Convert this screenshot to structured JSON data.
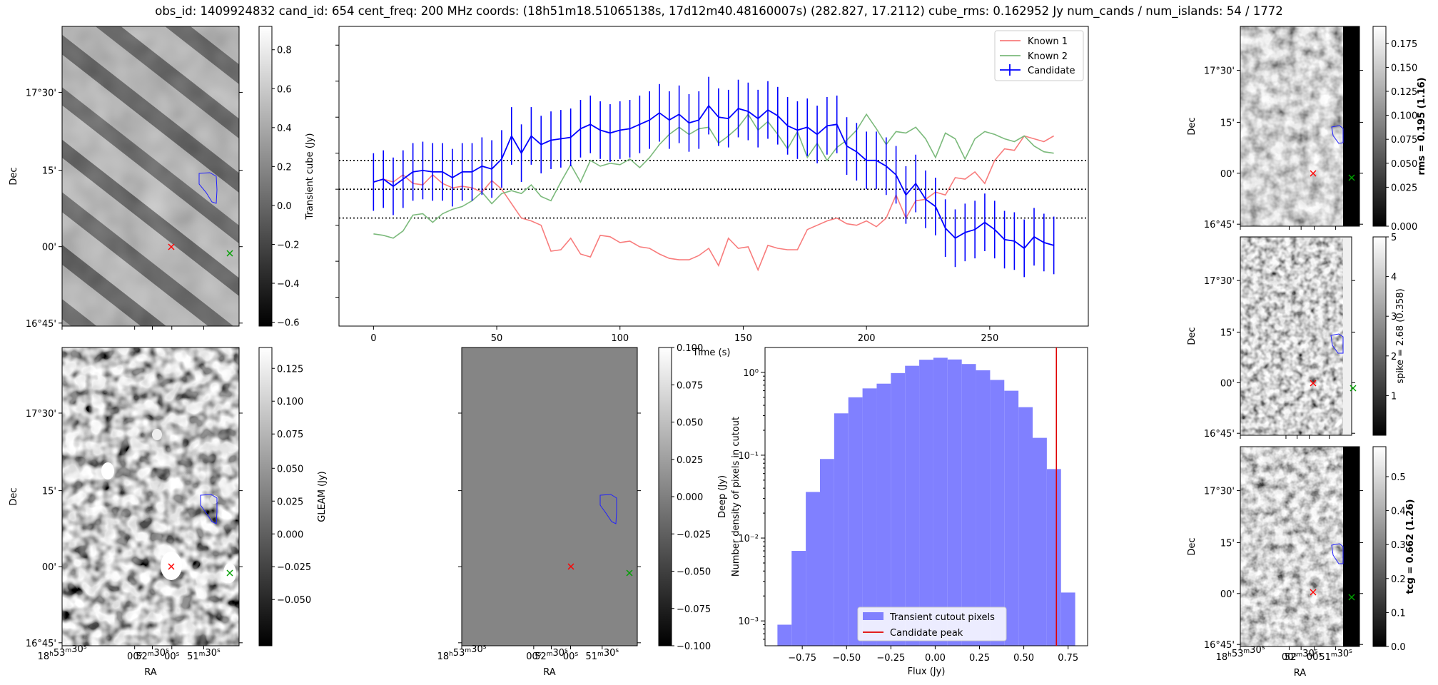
{
  "header": {
    "title": "obs_id: 1409924832 cand_id: 654 cent_freq: 200 MHz coords: (18h51m18.51065138s, 17d12m40.48160007s) (282.827, 17.2112) cube_rms: 0.162952 Jy num_cands / num_islands: 54 / 1772"
  },
  "sky_axes": {
    "dec_ticks": [
      "17°30'",
      "15'",
      "00'",
      "16°45'"
    ],
    "ra_ticks": [
      "18h53m30s",
      "00s",
      "52m30s",
      "00s",
      "51m30s"
    ],
    "xlabel": "RA",
    "ylabel": "Dec"
  },
  "image_panels": [
    {
      "id": "transient",
      "colorbar_label": "Transient cube (Jy)",
      "ticks": [
        "0.8",
        "0.6",
        "0.4",
        "0.2",
        "0.0",
        "−0.2",
        "−0.4",
        "−0.6"
      ]
    },
    {
      "id": "gleam",
      "colorbar_label": "GLEAM (Jy)",
      "ticks": [
        "0.125",
        "0.100",
        "0.075",
        "0.050",
        "0.025",
        "0.000",
        "−0.025",
        "−0.050"
      ]
    },
    {
      "id": "deep",
      "colorbar_label": "Deep (Jy)",
      "ticks": [
        "0.100",
        "0.075",
        "0.050",
        "0.025",
        "0.000",
        "−0.025",
        "−0.050",
        "−0.075",
        "−0.100"
      ]
    },
    {
      "id": "rms",
      "colorbar_label": "rms = 0.195 (1.16)",
      "ticks": [
        "0.175",
        "0.150",
        "0.125",
        "0.100",
        "0.075",
        "0.050",
        "0.025",
        "0.000"
      ]
    },
    {
      "id": "spike",
      "colorbar_label": "spike = 2.68 (0.358)",
      "ticks": [
        "5",
        "4",
        "3",
        "2",
        "1"
      ]
    },
    {
      "id": "tcg",
      "colorbar_label": "tcg = 0.662 (1.26)",
      "ticks": [
        "0.5",
        "0.4",
        "0.3",
        "0.2",
        "0.1",
        "0.0"
      ]
    }
  ],
  "chart_data": [
    {
      "type": "line",
      "title": "",
      "xlabel": "Time (s)",
      "ylabel": "",
      "xlim": [
        -14,
        290
      ],
      "ylim": [
        -0.95,
        1.13
      ],
      "x_ticks": [
        0,
        50,
        100,
        150,
        200,
        250
      ],
      "hlines": [
        0.2,
        0.0,
        -0.2
      ],
      "legend": [
        "Known 1",
        "Known 2",
        "Candidate"
      ],
      "legend_position": "top-right",
      "x": [
        0,
        4,
        8,
        12,
        16,
        20,
        24,
        28,
        32,
        36,
        40,
        44,
        48,
        52,
        56,
        60,
        64,
        68,
        72,
        76,
        80,
        84,
        88,
        92,
        96,
        100,
        104,
        108,
        112,
        116,
        120,
        124,
        128,
        132,
        136,
        140,
        144,
        148,
        152,
        156,
        160,
        164,
        168,
        172,
        176,
        180,
        184,
        188,
        192,
        196,
        200,
        204,
        208,
        212,
        216,
        220,
        224,
        228,
        232,
        236,
        240,
        244,
        248,
        252,
        256,
        260,
        264,
        268,
        272,
        276
      ],
      "series": [
        {
          "name": "Known 1",
          "color": "#f87c7c",
          "values": [
            0.05,
            0.07,
            0.05,
            0.1,
            0.04,
            0.03,
            0.1,
            0.04,
            0.01,
            0.02,
            0.01,
            -0.02,
            0.06,
            0.0,
            -0.1,
            -0.2,
            -0.22,
            -0.25,
            -0.43,
            -0.42,
            -0.34,
            -0.45,
            -0.47,
            -0.32,
            -0.33,
            -0.37,
            -0.36,
            -0.4,
            -0.41,
            -0.45,
            -0.48,
            -0.49,
            -0.49,
            -0.46,
            -0.41,
            -0.53,
            -0.34,
            -0.41,
            -0.4,
            -0.56,
            -0.39,
            -0.41,
            -0.42,
            -0.42,
            -0.28,
            -0.25,
            -0.22,
            -0.2,
            -0.24,
            -0.25,
            -0.22,
            -0.26,
            -0.2,
            -0.04,
            -0.2,
            -0.08,
            -0.07,
            -0.02,
            -0.04,
            0.08,
            0.07,
            0.12,
            0.04,
            0.2,
            0.28,
            0.27,
            0.37,
            0.35,
            0.33,
            0.37
          ]
        },
        {
          "name": "Known 2",
          "color": "#7cba7c",
          "values": [
            -0.31,
            -0.32,
            -0.34,
            -0.29,
            -0.18,
            -0.17,
            -0.23,
            -0.17,
            -0.14,
            -0.12,
            -0.08,
            -0.02,
            -0.1,
            -0.03,
            -0.01,
            -0.03,
            0.03,
            -0.05,
            -0.08,
            0.05,
            0.17,
            0.05,
            0.2,
            0.16,
            0.18,
            0.17,
            0.21,
            0.15,
            0.22,
            0.31,
            0.38,
            0.43,
            0.38,
            0.42,
            0.43,
            0.32,
            0.37,
            0.43,
            0.52,
            0.41,
            0.47,
            0.38,
            0.28,
            0.4,
            0.22,
            0.32,
            0.2,
            0.29,
            0.34,
            0.41,
            0.52,
            0.42,
            0.31,
            0.4,
            0.39,
            0.43,
            0.35,
            0.22,
            0.39,
            0.35,
            0.21,
            0.35,
            0.4,
            0.38,
            0.35,
            0.33,
            0.37,
            0.3,
            0.26,
            0.25
          ]
        },
        {
          "name": "Candidate",
          "color": "#0000ff",
          "values": [
            0.05,
            0.07,
            0.02,
            0.07,
            0.12,
            0.13,
            0.12,
            0.12,
            0.08,
            0.12,
            0.12,
            0.16,
            0.14,
            0.21,
            0.37,
            0.25,
            0.37,
            0.31,
            0.34,
            0.35,
            0.36,
            0.42,
            0.45,
            0.41,
            0.39,
            0.41,
            0.42,
            0.45,
            0.48,
            0.53,
            0.48,
            0.52,
            0.46,
            0.48,
            0.58,
            0.5,
            0.49,
            0.56,
            0.54,
            0.49,
            0.55,
            0.51,
            0.44,
            0.41,
            0.43,
            0.38,
            0.44,
            0.45,
            0.3,
            0.26,
            0.2,
            0.2,
            0.16,
            0.1,
            -0.04,
            0.04,
            -0.07,
            -0.12,
            -0.27,
            -0.34,
            -0.3,
            -0.28,
            -0.23,
            -0.28,
            -0.35,
            -0.36,
            -0.41,
            -0.33,
            -0.37,
            -0.39
          ]
        }
      ],
      "error_half_width": 0.2
    },
    {
      "type": "bar",
      "title": "",
      "xlabel": "Flux (Jy)",
      "ylabel": "Number density of pixels in cutout",
      "yscale": "log",
      "xlim": [
        -0.96,
        0.86
      ],
      "ylim_log10": [
        -3.3,
        0.3
      ],
      "x_ticks": [
        -0.75,
        -0.5,
        -0.25,
        0.0,
        0.25,
        0.5,
        0.75
      ],
      "x_tick_labels": [
        "−0.75",
        "−0.50",
        "−0.25",
        "0.00",
        "0.25",
        "0.50",
        "0.75"
      ],
      "y_ticks_log10": [
        0,
        -1,
        -2,
        -3
      ],
      "y_tick_labels": [
        "10⁰",
        "10⁻¹",
        "10⁻²",
        "10⁻³"
      ],
      "bin_edges": [
        -0.89,
        -0.81,
        -0.73,
        -0.65,
        -0.57,
        -0.49,
        -0.41,
        -0.33,
        -0.25,
        -0.17,
        -0.09,
        -0.01,
        0.07,
        0.15,
        0.23,
        0.31,
        0.39,
        0.47,
        0.55,
        0.63,
        0.71,
        0.79
      ],
      "densities": [
        0.0009,
        0.007,
        0.036,
        0.09,
        0.32,
        0.5,
        0.64,
        0.73,
        0.98,
        1.2,
        1.42,
        1.5,
        1.43,
        1.26,
        1.06,
        0.81,
        0.6,
        0.38,
        0.162,
        0.068,
        0.0022
      ],
      "candidate_peak": 0.684,
      "legend": [
        "Transient cutout pixels",
        "Candidate peak"
      ],
      "legend_position": "bottom-center",
      "colors": {
        "bars": "#8080ff",
        "peak": "#e00000"
      }
    }
  ]
}
